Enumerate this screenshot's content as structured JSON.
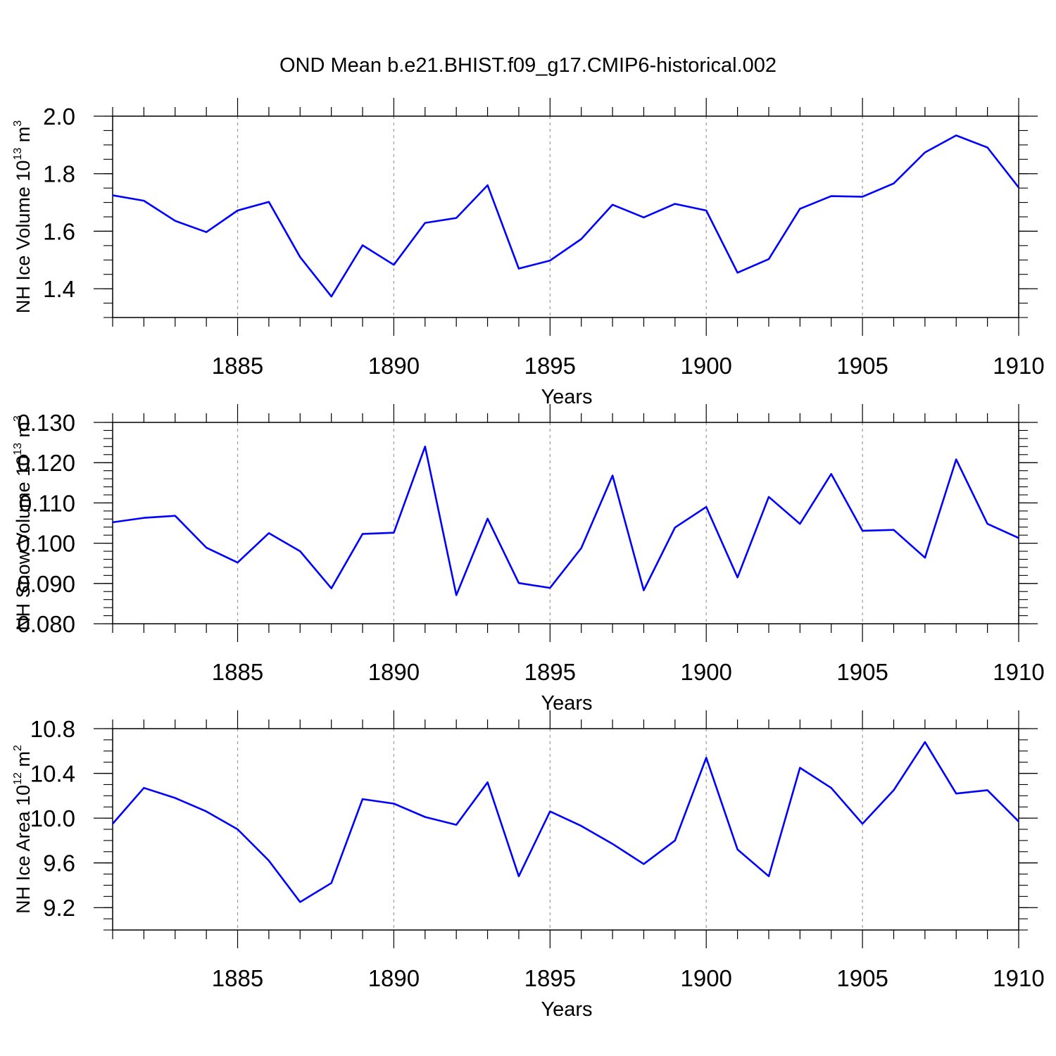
{
  "title": "OND Mean b.e21.BHIST.f09_g17.CMIP6-historical.002",
  "colors": {
    "line": "#0000ff",
    "axis": "#000000",
    "grid": "#999999"
  },
  "chart_data": [
    {
      "type": "line",
      "xlabel": "Years",
      "ylabel": {
        "base": "NH Ice Volume 10",
        "exp": "13",
        "unit": " m",
        "unit_exp": "3"
      },
      "xlim": [
        1881,
        1910
      ],
      "ylim": [
        1.3,
        2.0
      ],
      "x_tick_labels": [
        "1885",
        "1890",
        "1895",
        "1900",
        "1905",
        "1910"
      ],
      "y_tick_labels": [
        "1.4",
        "1.6",
        "1.8",
        "2.0"
      ],
      "y_ticks": [
        1.4,
        1.6,
        1.8,
        2.0
      ],
      "y_minor_step": 0.05,
      "grid": "vertical dashed at major x ticks",
      "x": [
        1881,
        1882,
        1883,
        1884,
        1885,
        1886,
        1887,
        1888,
        1889,
        1890,
        1891,
        1892,
        1893,
        1894,
        1895,
        1896,
        1897,
        1898,
        1899,
        1900,
        1901,
        1902,
        1903,
        1904,
        1905,
        1906,
        1907,
        1908,
        1909,
        1910
      ],
      "values": [
        1.725,
        1.706,
        1.636,
        1.597,
        1.672,
        1.702,
        1.51,
        1.373,
        1.551,
        1.483,
        1.629,
        1.646,
        1.76,
        1.47,
        1.498,
        1.573,
        1.692,
        1.648,
        1.695,
        1.672,
        1.456,
        1.503,
        1.678,
        1.722,
        1.72,
        1.766,
        1.874,
        1.933,
        1.891,
        1.752
      ]
    },
    {
      "type": "line",
      "xlabel": "Years",
      "ylabel": {
        "base": "NH Snow Volume 10",
        "exp": "13",
        "unit": " m",
        "unit_exp": "3"
      },
      "xlim": [
        1881,
        1910
      ],
      "ylim": [
        0.08,
        0.13
      ],
      "x_tick_labels": [
        "1885",
        "1890",
        "1895",
        "1900",
        "1905",
        "1910"
      ],
      "y_tick_labels": [
        "0.080",
        "0.090",
        "0.100",
        "0.110",
        "0.120",
        "0.130"
      ],
      "y_ticks": [
        0.08,
        0.09,
        0.1,
        0.11,
        0.12,
        0.13
      ],
      "y_minor_step": 0.002,
      "grid": "vertical dashed at major x ticks",
      "x": [
        1881,
        1882,
        1883,
        1884,
        1885,
        1886,
        1887,
        1888,
        1889,
        1890,
        1891,
        1892,
        1893,
        1894,
        1895,
        1896,
        1897,
        1898,
        1899,
        1900,
        1901,
        1902,
        1903,
        1904,
        1905,
        1906,
        1907,
        1908,
        1909,
        1910
      ],
      "values": [
        0.1052,
        0.1063,
        0.1068,
        0.0989,
        0.0952,
        0.1025,
        0.098,
        0.0888,
        0.1023,
        0.1026,
        0.124,
        0.0871,
        0.1061,
        0.0901,
        0.0889,
        0.0988,
        0.1168,
        0.0883,
        0.1039,
        0.109,
        0.0915,
        0.1115,
        0.1048,
        0.1172,
        0.1031,
        0.1033,
        0.0964,
        0.1208,
        0.1048,
        0.1013
      ]
    },
    {
      "type": "line",
      "xlabel": "Years",
      "ylabel": {
        "base": "NH Ice Area 10",
        "exp": "12",
        "unit": " m",
        "unit_exp": "2"
      },
      "xlim": [
        1881,
        1910
      ],
      "ylim": [
        9.0,
        10.8
      ],
      "x_tick_labels": [
        "1885",
        "1890",
        "1895",
        "1900",
        "1905",
        "1910"
      ],
      "y_tick_labels": [
        "9.2",
        "9.6",
        "10.0",
        "10.4",
        "10.8"
      ],
      "y_ticks": [
        9.2,
        9.6,
        10.0,
        10.4,
        10.8
      ],
      "y_minor_step": 0.1,
      "grid": "vertical dashed at major x ticks",
      "x": [
        1881,
        1882,
        1883,
        1884,
        1885,
        1886,
        1887,
        1888,
        1889,
        1890,
        1891,
        1892,
        1893,
        1894,
        1895,
        1896,
        1897,
        1898,
        1899,
        1900,
        1901,
        1902,
        1903,
        1904,
        1905,
        1906,
        1907,
        1908,
        1909,
        1910
      ],
      "values": [
        9.95,
        10.27,
        10.18,
        10.06,
        9.9,
        9.62,
        9.25,
        9.42,
        10.17,
        10.13,
        10.01,
        9.94,
        10.32,
        9.48,
        10.06,
        9.93,
        9.77,
        9.59,
        9.8,
        10.54,
        9.72,
        9.48,
        10.45,
        10.27,
        9.95,
        10.25,
        10.68,
        10.22,
        10.25,
        9.97
      ]
    }
  ]
}
